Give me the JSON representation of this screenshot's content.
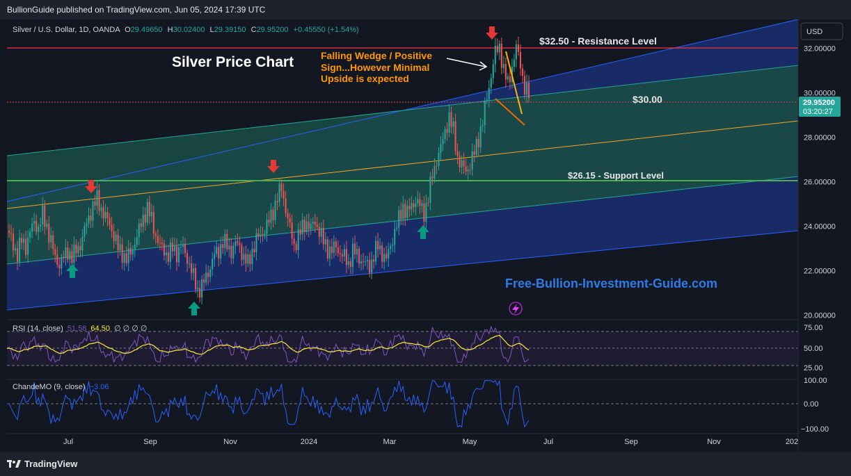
{
  "header": {
    "published_text": "BullionGuide published on TradingView.com, Jun 05, 2024 17:39 UTC"
  },
  "footer": {
    "brand": "TradingView"
  },
  "symbol_line": {
    "name": "Silver / U.S. Dollar, 1D, OANDA",
    "o_label": "O",
    "o_value": "29.49650",
    "h_label": "H",
    "h_value": "30.02400",
    "l_label": "L",
    "l_value": "29.39150",
    "c_label": "C",
    "c_value": "29.95200",
    "change": "+0.45550 (+1.54%)"
  },
  "currency_label": "USD",
  "price_tag": {
    "price": "29.95200",
    "countdown": "03:20:27"
  },
  "annotations": {
    "title": "Silver Price Chart",
    "wedge_line1": "Falling Wedge / Positive",
    "wedge_line2": "Sign...However Minimal",
    "wedge_line3": "Upside is expected",
    "resistance": "$32.50 - Resistance Level",
    "mid": "$30.00",
    "support": "$26.15 - Support Level",
    "website": "Free-Bullion-Investment-Guide.com"
  },
  "colors": {
    "up": "#26a69a",
    "down": "#ef5350",
    "support_line": "#4caf50",
    "resistance_line": "#f23645",
    "channel_blue": "#1a3a8a",
    "channel_green": "#1b4d44",
    "rsi_line": "#7e57c2",
    "rsi_ma": "#ffeb3b",
    "cmo_line": "#2962ff",
    "annotation_orange": "#ff9800",
    "website_blue": "#2f7be6"
  },
  "chart_data": {
    "type": "candlestick",
    "price_axis_ticks": [
      "32.00000",
      "30.00000",
      "28.00000",
      "26.00000",
      "24.00000",
      "22.00000",
      "20.00000"
    ],
    "x_axis_ticks": [
      "Jul",
      "Sep",
      "Nov",
      "2024",
      "Mar",
      "May",
      "Jul",
      "Sep",
      "Nov",
      "202"
    ],
    "ylim": [
      19.8,
      33.3
    ],
    "dates_range": [
      "2023-05-15",
      "2024-06-05"
    ],
    "horizontal_levels": [
      32.5,
      30.0,
      26.15
    ],
    "series_close": [
      [
        0,
        23.8
      ],
      [
        6,
        23.2
      ],
      [
        10,
        22.7
      ],
      [
        14,
        23.4
      ],
      [
        18,
        23.1
      ],
      [
        22,
        23.7
      ],
      [
        26,
        24.2
      ],
      [
        30,
        23.9
      ],
      [
        34,
        24.5
      ],
      [
        38,
        24.0
      ],
      [
        42,
        23.3
      ],
      [
        46,
        22.6
      ],
      [
        50,
        22.3
      ],
      [
        54,
        22.6
      ],
      [
        58,
        22.9
      ],
      [
        62,
        22.6
      ],
      [
        66,
        22.9
      ],
      [
        70,
        23.2
      ],
      [
        74,
        23.8
      ],
      [
        78,
        24.4
      ],
      [
        82,
        24.9
      ],
      [
        86,
        25.2
      ],
      [
        90,
        24.8
      ],
      [
        94,
        24.4
      ],
      [
        98,
        24.1
      ],
      [
        102,
        23.6
      ],
      [
        106,
        23.0
      ],
      [
        110,
        22.8
      ],
      [
        114,
        22.5
      ],
      [
        118,
        22.8
      ],
      [
        122,
        23.3
      ],
      [
        126,
        23.8
      ],
      [
        130,
        24.4
      ],
      [
        134,
        24.8
      ],
      [
        138,
        24.3
      ],
      [
        142,
        23.6
      ],
      [
        146,
        23.1
      ],
      [
        150,
        22.9
      ],
      [
        154,
        22.7
      ],
      [
        158,
        23.0
      ],
      [
        162,
        22.8
      ],
      [
        166,
        23.1
      ],
      [
        170,
        22.8
      ],
      [
        174,
        22.3
      ],
      [
        178,
        21.7
      ],
      [
        182,
        21.1
      ],
      [
        186,
        21.3
      ],
      [
        190,
        21.7
      ],
      [
        194,
        22.2
      ],
      [
        198,
        22.7
      ],
      [
        202,
        22.9
      ],
      [
        206,
        23.3
      ],
      [
        210,
        23.1
      ],
      [
        214,
        22.9
      ],
      [
        218,
        23.2
      ],
      [
        222,
        23.1
      ],
      [
        226,
        22.6
      ],
      [
        230,
        22.3
      ],
      [
        234,
        22.9
      ],
      [
        238,
        23.4
      ],
      [
        242,
        23.6
      ],
      [
        246,
        23.9
      ],
      [
        250,
        24.2
      ],
      [
        254,
        24.7
      ],
      [
        258,
        25.3
      ],
      [
        262,
        25.7
      ],
      [
        266,
        24.8
      ],
      [
        270,
        23.9
      ],
      [
        274,
        23.1
      ],
      [
        278,
        23.6
      ],
      [
        282,
        23.9
      ],
      [
        286,
        24.2
      ],
      [
        290,
        23.9
      ],
      [
        294,
        24.2
      ],
      [
        298,
        23.8
      ],
      [
        302,
        23.3
      ],
      [
        306,
        23.0
      ],
      [
        310,
        22.9
      ],
      [
        314,
        23.1
      ],
      [
        318,
        22.8
      ],
      [
        322,
        22.6
      ],
      [
        326,
        22.3
      ],
      [
        330,
        22.9
      ],
      [
        334,
        22.7
      ],
      [
        338,
        22.5
      ],
      [
        342,
        22.3
      ],
      [
        346,
        22.2
      ],
      [
        350,
        22.7
      ],
      [
        354,
        23.1
      ],
      [
        358,
        22.8
      ],
      [
        362,
        22.5
      ],
      [
        366,
        23.1
      ],
      [
        370,
        23.8
      ],
      [
        374,
        24.3
      ],
      [
        378,
        24.9
      ],
      [
        382,
        24.6
      ],
      [
        386,
        24.9
      ],
      [
        390,
        25.2
      ],
      [
        394,
        24.9
      ],
      [
        398,
        24.6
      ],
      [
        402,
        25.3
      ],
      [
        406,
        26.3
      ],
      [
        410,
        27.0
      ],
      [
        414,
        27.5
      ],
      [
        418,
        28.3
      ],
      [
        422,
        28.9
      ],
      [
        426,
        28.3
      ],
      [
        430,
        27.1
      ],
      [
        434,
        26.7
      ],
      [
        438,
        26.5
      ],
      [
        442,
        26.8
      ],
      [
        446,
        27.3
      ],
      [
        450,
        28.0
      ],
      [
        454,
        28.7
      ],
      [
        458,
        29.8
      ],
      [
        462,
        30.8
      ],
      [
        466,
        31.8
      ],
      [
        470,
        32.1
      ],
      [
        474,
        31.0
      ],
      [
        478,
        30.4
      ],
      [
        482,
        31.2
      ],
      [
        486,
        32.0
      ],
      [
        490,
        31.3
      ],
      [
        494,
        30.2
      ],
      [
        498,
        29.9
      ]
    ],
    "rsi": {
      "label": "RSI (14, close)",
      "value": "51.58",
      "ma_value": "64.50",
      "extra": "∅ ∅ ∅ ∅",
      "ticks": [
        "75.00",
        "50.00",
        "25.00"
      ],
      "upper": 70,
      "mid": 50,
      "lower": 30
    },
    "cmo": {
      "label": "ChandeMO (9, close)",
      "value": "−3.06",
      "ticks": [
        "100.00",
        "0.00",
        "−100.00"
      ]
    }
  }
}
